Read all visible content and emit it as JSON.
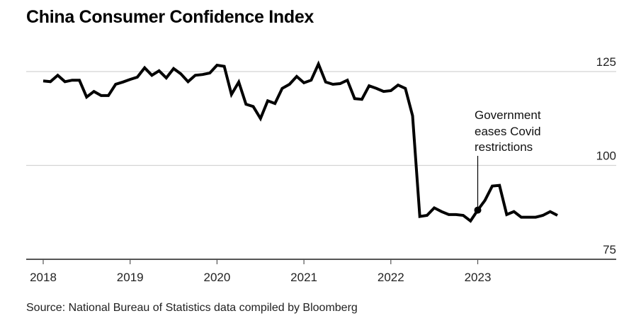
{
  "chart_data": {
    "type": "line",
    "title": "China Consumer Confidence Index",
    "source": "Source: National Bureau of Statistics data compiled by Bloomberg",
    "xlabel": "",
    "ylabel": "",
    "x_ticks": [
      "2018",
      "2019",
      "2020",
      "2021",
      "2022",
      "2023"
    ],
    "y_ticks": [
      75,
      100,
      125
    ],
    "ylim": [
      75,
      125
    ],
    "xlim": [
      "2018-01",
      "2024-01"
    ],
    "grid": true,
    "line_color": "#000000",
    "annotation": {
      "lines": [
        "Government",
        "eases Covid",
        "restrictions"
      ],
      "x": "2023-01"
    },
    "x": [
      "2018-01",
      "2018-02",
      "2018-03",
      "2018-04",
      "2018-05",
      "2018-06",
      "2018-07",
      "2018-08",
      "2018-09",
      "2018-10",
      "2018-11",
      "2018-12",
      "2019-01",
      "2019-02",
      "2019-03",
      "2019-04",
      "2019-05",
      "2019-06",
      "2019-07",
      "2019-08",
      "2019-09",
      "2019-10",
      "2019-11",
      "2019-12",
      "2020-01",
      "2020-02",
      "2020-03",
      "2020-04",
      "2020-05",
      "2020-06",
      "2020-07",
      "2020-08",
      "2020-09",
      "2020-10",
      "2020-11",
      "2020-12",
      "2021-01",
      "2021-02",
      "2021-03",
      "2021-04",
      "2021-05",
      "2021-06",
      "2021-07",
      "2021-08",
      "2021-09",
      "2021-10",
      "2021-11",
      "2021-12",
      "2022-01",
      "2022-02",
      "2022-03",
      "2022-04",
      "2022-05",
      "2022-06",
      "2022-07",
      "2022-08",
      "2022-09",
      "2022-10",
      "2022-11",
      "2022-12",
      "2023-01",
      "2023-02",
      "2023-03",
      "2023-04",
      "2023-05",
      "2023-06",
      "2023-07",
      "2023-08",
      "2023-09",
      "2023-10",
      "2023-11",
      "2023-12"
    ],
    "values": [
      122.5,
      122.3,
      124.0,
      122.3,
      122.7,
      122.7,
      118.2,
      119.7,
      118.6,
      118.6,
      121.6,
      122.2,
      122.9,
      123.5,
      126.0,
      124.0,
      125.2,
      123.3,
      125.8,
      124.4,
      122.3,
      124.0,
      124.2,
      124.6,
      126.7,
      126.4,
      118.9,
      122.2,
      116.3,
      115.7,
      112.5,
      117.2,
      116.5,
      120.5,
      121.6,
      123.7,
      122.0,
      122.7,
      127.0,
      122.2,
      121.6,
      121.8,
      122.7,
      117.8,
      117.6,
      121.2,
      120.5,
      119.7,
      119.9,
      121.4,
      120.5,
      113.2,
      86.4,
      86.7,
      88.7,
      87.7,
      86.9,
      86.9,
      86.7,
      85.2,
      88.1,
      90.7,
      94.5,
      94.7,
      86.9,
      87.7,
      86.2,
      86.2,
      86.2,
      86.7,
      87.7,
      86.7
    ]
  }
}
